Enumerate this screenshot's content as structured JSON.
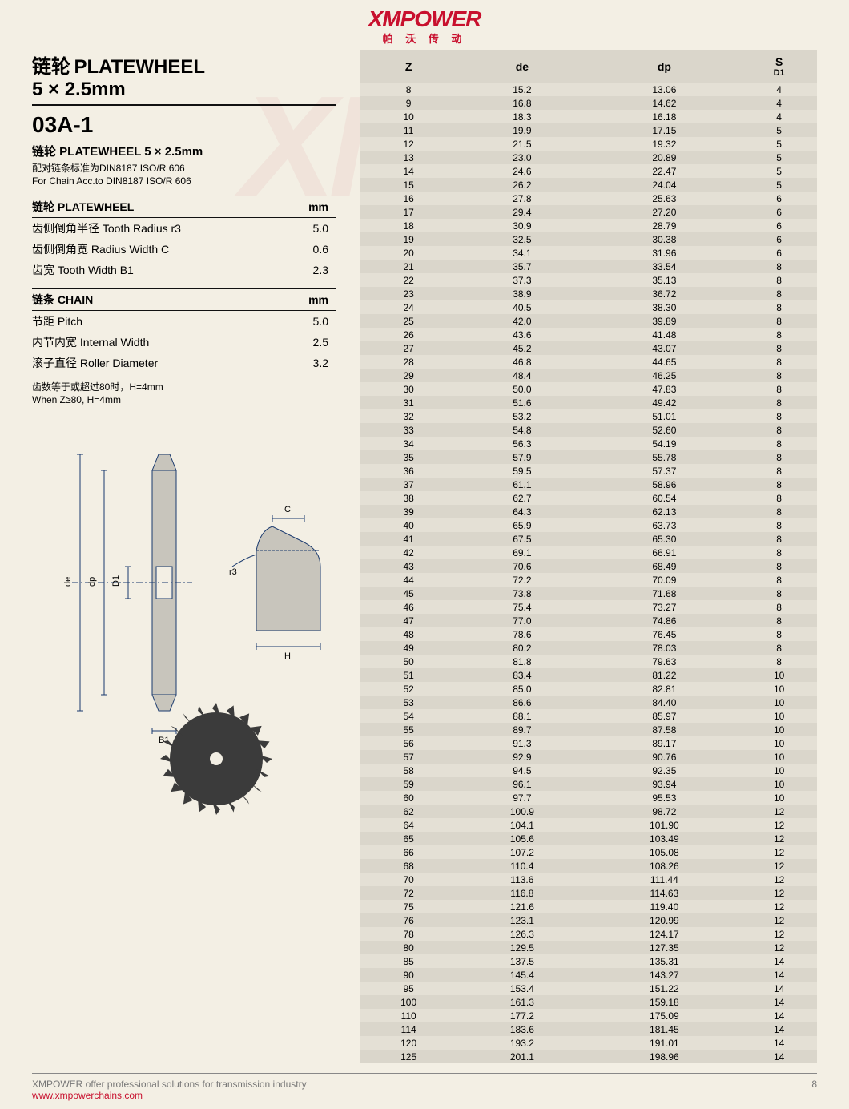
{
  "logo": {
    "main": "XMPOWER",
    "sub": "帕 沃 传 动"
  },
  "title": {
    "line1_cn": "链轮",
    "line1_en": "PLATEWHEEL",
    "line2": "5 × 2.5mm"
  },
  "model": "03A-1",
  "subtitle": "链轮  PLATEWHEEL  5 × 2.5mm",
  "std_cn": "配对链条标准为DIN8187 ISO/R 606",
  "std_en": "For Chain Acc.to DIN8187 ISO/R 606",
  "platewheel": {
    "header_cn": "链轮 PLATEWHEEL",
    "header_unit": "mm",
    "rows": [
      {
        "label": "齿侧倒角半径  Tooth Radius r3",
        "value": "5.0"
      },
      {
        "label": "齿侧倒角宽  Radius Width C",
        "value": "0.6"
      },
      {
        "label": "齿宽  Tooth Width B1",
        "value": "2.3"
      }
    ]
  },
  "chain": {
    "header_cn": "链条 CHAIN",
    "header_unit": "mm",
    "rows": [
      {
        "label": "节距  Pitch",
        "value": "5.0"
      },
      {
        "label": "内节内宽  Internal Width",
        "value": "2.5"
      },
      {
        "label": "滚子直径  Roller Diameter",
        "value": "3.2"
      }
    ]
  },
  "note_cn": "齿数等于或超过80时，H=4mm",
  "note_en": "When Z≥80, H=4mm",
  "diagram": {
    "de": "de",
    "dp": "dp",
    "D1": "D1",
    "B1": "B1",
    "H": "H",
    "C": "C",
    "r3": "r3"
  },
  "table": {
    "headers": {
      "z": "Z",
      "de": "de",
      "dp": "dp",
      "s": "S",
      "s_sub": "D1"
    },
    "rows": [
      [
        "8",
        "15.2",
        "13.06",
        "4"
      ],
      [
        "9",
        "16.8",
        "14.62",
        "4"
      ],
      [
        "10",
        "18.3",
        "16.18",
        "4"
      ],
      [
        "11",
        "19.9",
        "17.15",
        "5"
      ],
      [
        "12",
        "21.5",
        "19.32",
        "5"
      ],
      [
        "13",
        "23.0",
        "20.89",
        "5"
      ],
      [
        "14",
        "24.6",
        "22.47",
        "5"
      ],
      [
        "15",
        "26.2",
        "24.04",
        "5"
      ],
      [
        "16",
        "27.8",
        "25.63",
        "6"
      ],
      [
        "17",
        "29.4",
        "27.20",
        "6"
      ],
      [
        "18",
        "30.9",
        "28.79",
        "6"
      ],
      [
        "19",
        "32.5",
        "30.38",
        "6"
      ],
      [
        "20",
        "34.1",
        "31.96",
        "6"
      ],
      [
        "21",
        "35.7",
        "33.54",
        "8"
      ],
      [
        "22",
        "37.3",
        "35.13",
        "8"
      ],
      [
        "23",
        "38.9",
        "36.72",
        "8"
      ],
      [
        "24",
        "40.5",
        "38.30",
        "8"
      ],
      [
        "25",
        "42.0",
        "39.89",
        "8"
      ],
      [
        "26",
        "43.6",
        "41.48",
        "8"
      ],
      [
        "27",
        "45.2",
        "43.07",
        "8"
      ],
      [
        "28",
        "46.8",
        "44.65",
        "8"
      ],
      [
        "29",
        "48.4",
        "46.25",
        "8"
      ],
      [
        "30",
        "50.0",
        "47.83",
        "8"
      ],
      [
        "31",
        "51.6",
        "49.42",
        "8"
      ],
      [
        "32",
        "53.2",
        "51.01",
        "8"
      ],
      [
        "33",
        "54.8",
        "52.60",
        "8"
      ],
      [
        "34",
        "56.3",
        "54.19",
        "8"
      ],
      [
        "35",
        "57.9",
        "55.78",
        "8"
      ],
      [
        "36",
        "59.5",
        "57.37",
        "8"
      ],
      [
        "37",
        "61.1",
        "58.96",
        "8"
      ],
      [
        "38",
        "62.7",
        "60.54",
        "8"
      ],
      [
        "39",
        "64.3",
        "62.13",
        "8"
      ],
      [
        "40",
        "65.9",
        "63.73",
        "8"
      ],
      [
        "41",
        "67.5",
        "65.30",
        "8"
      ],
      [
        "42",
        "69.1",
        "66.91",
        "8"
      ],
      [
        "43",
        "70.6",
        "68.49",
        "8"
      ],
      [
        "44",
        "72.2",
        "70.09",
        "8"
      ],
      [
        "45",
        "73.8",
        "71.68",
        "8"
      ],
      [
        "46",
        "75.4",
        "73.27",
        "8"
      ],
      [
        "47",
        "77.0",
        "74.86",
        "8"
      ],
      [
        "48",
        "78.6",
        "76.45",
        "8"
      ],
      [
        "49",
        "80.2",
        "78.03",
        "8"
      ],
      [
        "50",
        "81.8",
        "79.63",
        "8"
      ],
      [
        "51",
        "83.4",
        "81.22",
        "10"
      ],
      [
        "52",
        "85.0",
        "82.81",
        "10"
      ],
      [
        "53",
        "86.6",
        "84.40",
        "10"
      ],
      [
        "54",
        "88.1",
        "85.97",
        "10"
      ],
      [
        "55",
        "89.7",
        "87.58",
        "10"
      ],
      [
        "56",
        "91.3",
        "89.17",
        "10"
      ],
      [
        "57",
        "92.9",
        "90.76",
        "10"
      ],
      [
        "58",
        "94.5",
        "92.35",
        "10"
      ],
      [
        "59",
        "96.1",
        "93.94",
        "10"
      ],
      [
        "60",
        "97.7",
        "95.53",
        "10"
      ],
      [
        "62",
        "100.9",
        "98.72",
        "12"
      ],
      [
        "64",
        "104.1",
        "101.90",
        "12"
      ],
      [
        "65",
        "105.6",
        "103.49",
        "12"
      ],
      [
        "66",
        "107.2",
        "105.08",
        "12"
      ],
      [
        "68",
        "110.4",
        "108.26",
        "12"
      ],
      [
        "70",
        "113.6",
        "111.44",
        "12"
      ],
      [
        "72",
        "116.8",
        "114.63",
        "12"
      ],
      [
        "75",
        "121.6",
        "119.40",
        "12"
      ],
      [
        "76",
        "123.1",
        "120.99",
        "12"
      ],
      [
        "78",
        "126.3",
        "124.17",
        "12"
      ],
      [
        "80",
        "129.5",
        "127.35",
        "12"
      ],
      [
        "85",
        "137.5",
        "135.31",
        "14"
      ],
      [
        "90",
        "145.4",
        "143.27",
        "14"
      ],
      [
        "95",
        "153.4",
        "151.22",
        "14"
      ],
      [
        "100",
        "161.3",
        "159.18",
        "14"
      ],
      [
        "110",
        "177.2",
        "175.09",
        "14"
      ],
      [
        "114",
        "183.6",
        "181.45",
        "14"
      ],
      [
        "120",
        "193.2",
        "191.01",
        "14"
      ],
      [
        "125",
        "201.1",
        "198.96",
        "14"
      ]
    ]
  },
  "footer": {
    "text": "XMPOWER offer professional solutions for transmission industry",
    "url": "www.xmpowerchains.com",
    "page": "8"
  },
  "colors": {
    "accent": "#c8102e",
    "row_even": "#e4e0d5",
    "row_odd": "#dad6cb",
    "bg": "#f3efe4"
  }
}
